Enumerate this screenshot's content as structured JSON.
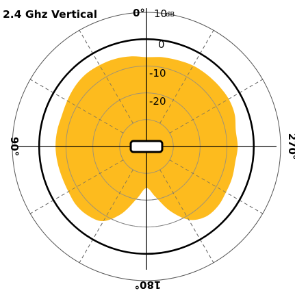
{
  "chart_data": {
    "type": "polar-area",
    "title": "2.4 Ghz Vertical",
    "angle_labels": {
      "top": "0°",
      "left": "90°",
      "right": "270°",
      "bottom": "180°"
    },
    "radial_ticks": [
      {
        "value": 10,
        "label": "10",
        "unit": "dB"
      },
      {
        "value": 0,
        "label": "0"
      },
      {
        "value": -10,
        "label": "-10"
      },
      {
        "value": -20,
        "label": "-20"
      }
    ],
    "r_range_db": [
      -40,
      10
    ],
    "reference_circle_db": 0,
    "angular_grid_step_deg": 30,
    "fill_color": "#FDBB1E",
    "series": [
      {
        "values": [
          {
            "angle": 0,
            "db": -6.7
          },
          {
            "angle": 10,
            "db": -5.9
          },
          {
            "angle": 20,
            "db": -5.3
          },
          {
            "angle": 30,
            "db": -5.0
          },
          {
            "angle": 40,
            "db": -4.8
          },
          {
            "angle": 50,
            "db": -5.2
          },
          {
            "angle": 60,
            "db": -5.9
          },
          {
            "angle": 70,
            "db": -6.4
          },
          {
            "angle": 80,
            "db": -6.2
          },
          {
            "angle": 90,
            "db": -6.1
          },
          {
            "angle": 100,
            "db": -6.3
          },
          {
            "angle": 110,
            "db": -6.5
          },
          {
            "angle": 120,
            "db": -6.4
          },
          {
            "angle": 130,
            "db": -5.9
          },
          {
            "angle": 140,
            "db": -6.3
          },
          {
            "angle": 150,
            "db": -7.9
          },
          {
            "angle": 160,
            "db": -13.5
          },
          {
            "angle": 170,
            "db": -20.5
          },
          {
            "angle": 180,
            "db": -24.5
          },
          {
            "angle": 190,
            "db": -21.0
          },
          {
            "angle": 200,
            "db": -14.5
          },
          {
            "angle": 210,
            "db": -8.5
          },
          {
            "angle": 220,
            "db": -5.8
          },
          {
            "angle": 230,
            "db": -5.3
          },
          {
            "angle": 240,
            "db": -5.8
          },
          {
            "angle": 250,
            "db": -6.0
          },
          {
            "angle": 260,
            "db": -6.4
          },
          {
            "angle": 270,
            "db": -6.0
          },
          {
            "angle": 280,
            "db": -6.2
          },
          {
            "angle": 290,
            "db": -5.0
          },
          {
            "angle": 300,
            "db": -4.6
          },
          {
            "angle": 310,
            "db": -4.8
          },
          {
            "angle": 320,
            "db": -5.0
          },
          {
            "angle": 330,
            "db": -5.2
          },
          {
            "angle": 340,
            "db": -5.8
          },
          {
            "angle": 350,
            "db": -6.2
          }
        ]
      }
    ],
    "grid": true,
    "legend": false
  }
}
